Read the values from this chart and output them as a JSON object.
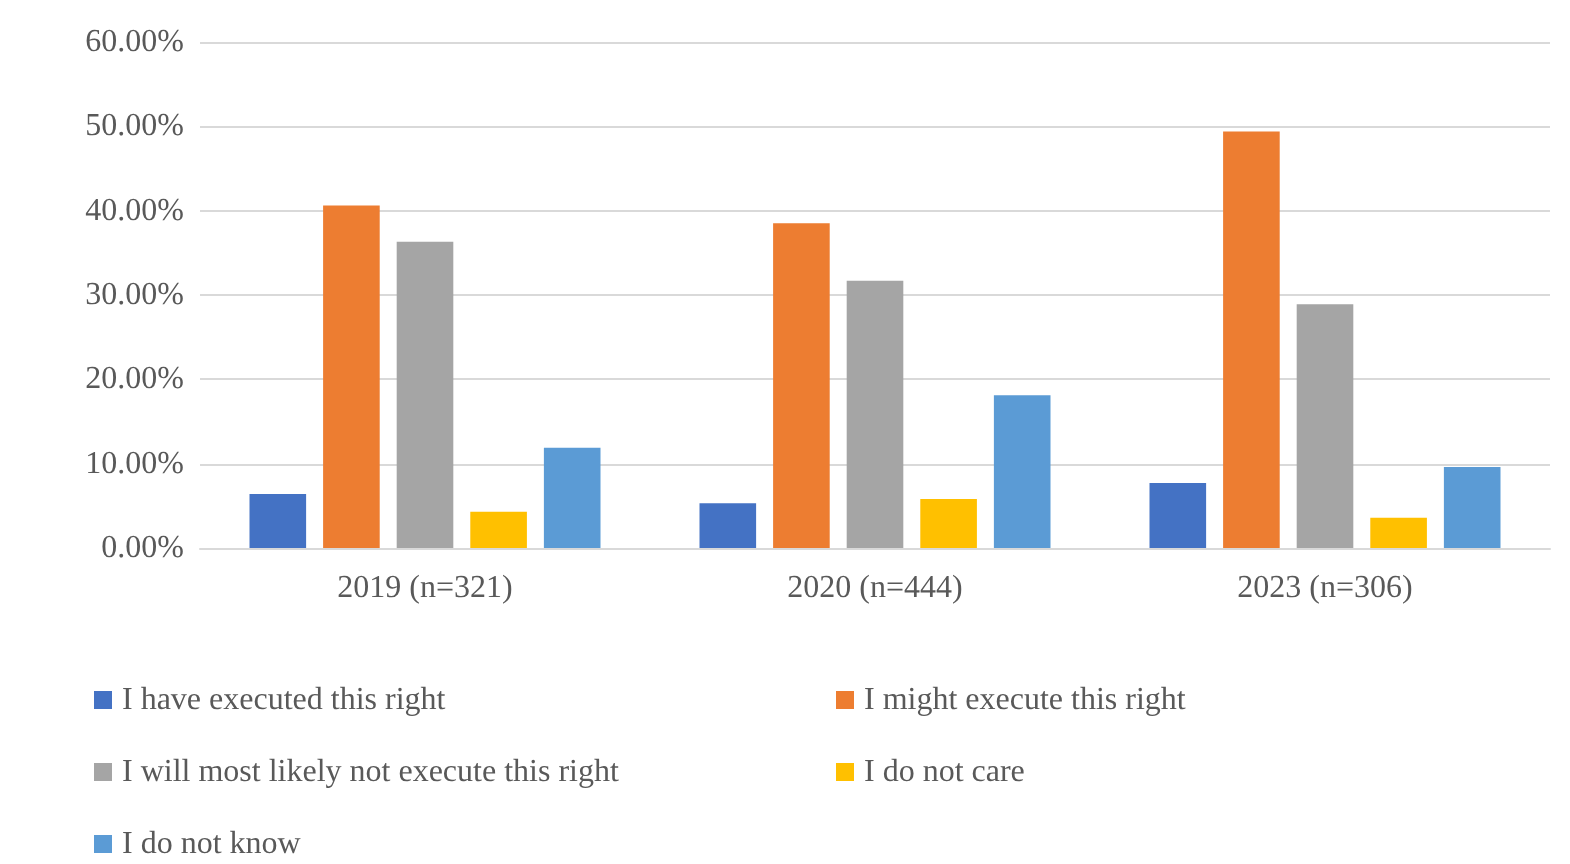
{
  "chart_data": {
    "type": "bar",
    "categories": [
      "2019 (n=321)",
      "2020 (n=444)",
      "2023 (n=306)"
    ],
    "series": [
      {
        "name": "I have executed this right",
        "color": "#4472c4",
        "values": [
          6.4,
          5.3,
          7.7
        ]
      },
      {
        "name": "I might execute this right",
        "color": "#ed7d31",
        "values": [
          40.6,
          38.5,
          49.4
        ]
      },
      {
        "name": "I will most likely not execute this right",
        "color": "#a5a5a5",
        "values": [
          36.3,
          31.7,
          28.9
        ]
      },
      {
        "name": "I do not care",
        "color": "#ffc000",
        "values": [
          4.3,
          5.8,
          3.6
        ]
      },
      {
        "name": "I do not know",
        "color": "#5b9bd5",
        "values": [
          11.9,
          18.1,
          9.6
        ]
      }
    ],
    "ylim": [
      0,
      60
    ],
    "yticks": [
      {
        "value": 0,
        "label": "0.00%"
      },
      {
        "value": 10,
        "label": "10.00%"
      },
      {
        "value": 20,
        "label": "20.00%"
      },
      {
        "value": 30,
        "label": "30.00%"
      },
      {
        "value": 40,
        "label": "40.00%"
      },
      {
        "value": 50,
        "label": "50.00%"
      },
      {
        "value": 60,
        "label": "60.00%"
      }
    ],
    "grid": true,
    "legend": "bottom"
  }
}
